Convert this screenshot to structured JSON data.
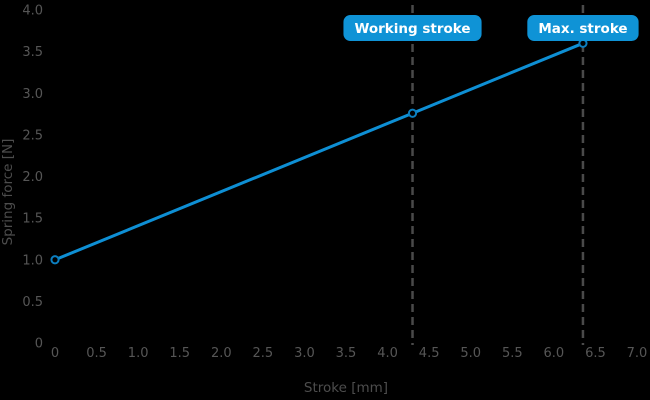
{
  "colors": {
    "background": "#000000",
    "accent_blue": "#0f93d6",
    "line_blue": "#0e8fd4",
    "tick_text": "#565656",
    "axis_text": "#4d4d4d",
    "dashed_line": "#4a4a4a",
    "badge_text": "#ffffff",
    "marker_fill": "#000000",
    "marker_stroke": "#0c7fc0"
  },
  "chart_data": {
    "type": "line",
    "title": "",
    "xlabel": "Stroke [mm]",
    "ylabel": "Spring force [N]",
    "xlim": [
      0,
      7.0
    ],
    "ylim": [
      0,
      4.0
    ],
    "grid": false,
    "legend": "none",
    "x_ticks": [
      "0",
      "0.5",
      "1.0",
      "1.5",
      "2.0",
      "2.5",
      "3.0",
      "3.5",
      "4.0",
      "4.5",
      "5.0",
      "5.5",
      "6.0",
      "6.5",
      "7.0"
    ],
    "y_ticks": [
      "0",
      "0.5",
      "1.0",
      "1.5",
      "2.0",
      "2.5",
      "3.0",
      "3.5",
      "4.0"
    ],
    "series": [
      {
        "name": "spring-force",
        "x": [
          0,
          4.3,
          6.35
        ],
        "y": [
          1.0,
          2.76,
          3.6
        ],
        "marker": "open-circle"
      }
    ],
    "annotations": [
      {
        "label": "Working stroke",
        "x": 4.3,
        "type": "vline-badge"
      },
      {
        "label": "Max. stroke",
        "x": 6.35,
        "type": "vline-badge"
      }
    ]
  }
}
